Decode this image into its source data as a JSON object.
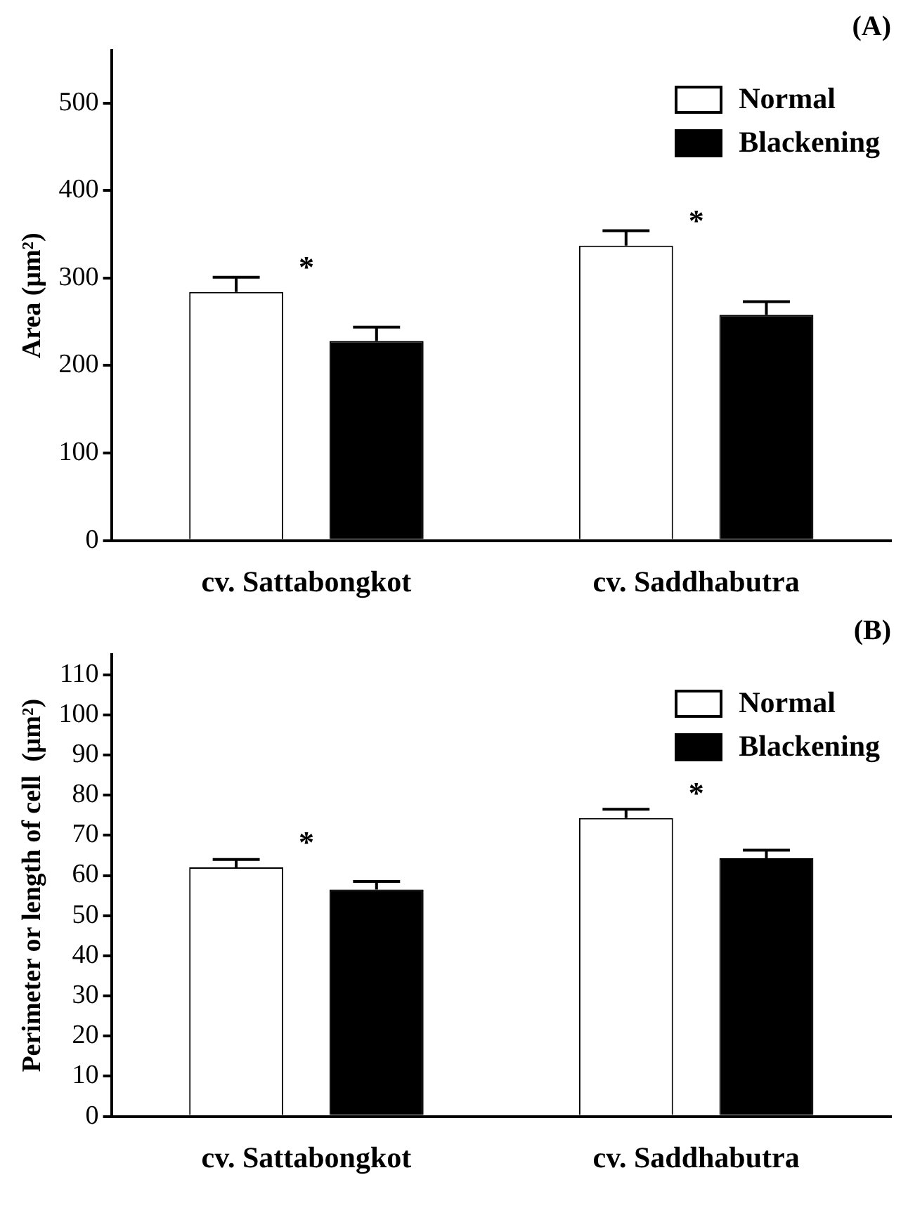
{
  "chart_data": [
    {
      "type": "bar",
      "title": "(A)",
      "ylabel": "Area (μm²)",
      "categories": [
        "cv. Sattabongkot",
        "cv. Saddhabutra"
      ],
      "series": [
        {
          "name": "Normal",
          "color": "#ffffff",
          "values": [
            284,
            337
          ],
          "errors": [
            17,
            17
          ]
        },
        {
          "name": "Blackening",
          "color": "#000000",
          "values": [
            228,
            258
          ],
          "errors": [
            16,
            15
          ]
        }
      ],
      "ylim": [
        0,
        560
      ],
      "yticks": [
        0,
        100,
        200,
        300,
        400,
        500
      ],
      "grid": false,
      "legend": "top right",
      "annotations": [
        "*",
        "*"
      ]
    },
    {
      "type": "bar",
      "title": "(B)",
      "ylabel": "Perimeter or length of cell  (μm²)",
      "categories": [
        "cv. Sattabongkot",
        "cv. Saddhabutra"
      ],
      "series": [
        {
          "name": "Normal",
          "color": "#ffffff",
          "values": [
            62,
            74.3
          ],
          "errors": [
            2,
            2.2
          ]
        },
        {
          "name": "Blackening",
          "color": "#000000",
          "values": [
            56.5,
            64.3
          ],
          "errors": [
            2,
            2
          ]
        }
      ],
      "ylim": [
        0,
        115
      ],
      "yticks": [
        0,
        10,
        20,
        30,
        40,
        50,
        60,
        70,
        80,
        90,
        100,
        110
      ],
      "grid": false,
      "legend": "top right",
      "annotations": [
        "*",
        "*"
      ]
    }
  ]
}
